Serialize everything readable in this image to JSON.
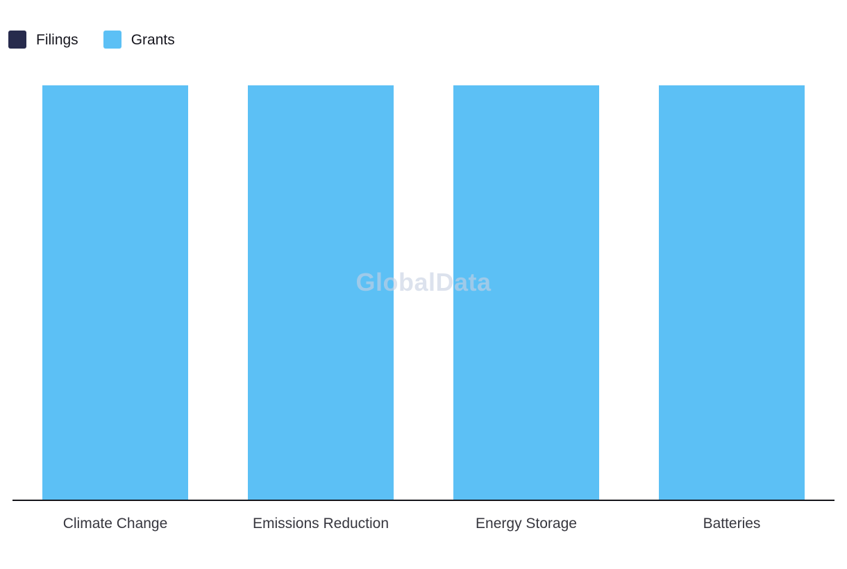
{
  "legend": [
    {
      "label": "Filings",
      "color": "#272B4D"
    },
    {
      "label": "Grants",
      "color": "#5CC0F5"
    }
  ],
  "watermark": "GlobalData",
  "colors": {
    "axis_line": "#15151a",
    "background": "#ffffff",
    "watermark": "#C6D1E2"
  },
  "chart_data": {
    "type": "bar",
    "categories": [
      "Climate Change",
      "Emissions Reduction",
      "Energy Storage",
      "Batteries"
    ],
    "series": [
      {
        "name": "Filings",
        "color": "#272B4D",
        "values": [
          0,
          0,
          0,
          0
        ]
      },
      {
        "name": "Grants",
        "color": "#5CC0F5",
        "values": [
          100,
          100,
          100,
          100
        ]
      }
    ],
    "title": "",
    "xlabel": "",
    "ylabel": "",
    "ylim": [
      0,
      100
    ],
    "grid": false,
    "y_axis_visible": false,
    "legend_position": "top-left",
    "note": "No numeric axis shown; all Grants bars render at full height, Filings bars not visible"
  }
}
